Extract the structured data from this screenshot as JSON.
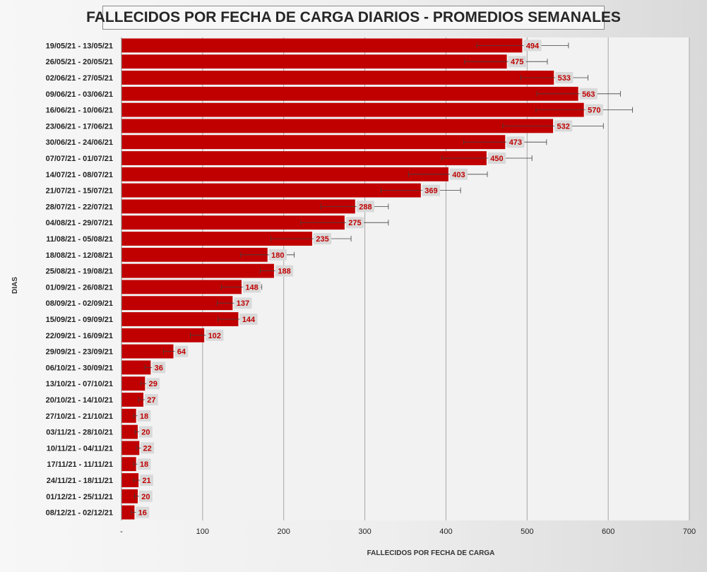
{
  "chart_data": {
    "type": "bar",
    "orientation": "horizontal",
    "title": "FALLECIDOS POR FECHA DE CARGA DIARIOS - PROMEDIOS SEMANALES",
    "xlabel": "FALLECIDOS POR FECHA DE CARGA",
    "ylabel": "DIAS",
    "xlim": [
      0,
      700
    ],
    "xticks": [
      0,
      100,
      200,
      300,
      400,
      500,
      600,
      700
    ],
    "xtick_labels": [
      "-",
      "100",
      "200",
      "300",
      "400",
      "500",
      "600",
      "700"
    ],
    "grid": true,
    "legend": "none",
    "bar_color": "#c00000",
    "categories": [
      "19/05/21 - 13/05/21",
      "26/05/21 - 20/05/21",
      "02/06/21 - 27/05/21",
      "09/06/21 - 03/06/21",
      "16/06/21 - 10/06/21",
      "23/06/21 - 17/06/21",
      "30/06/21 - 24/06/21",
      "07/07/21 - 01/07/21",
      "14/07/21 - 08/07/21",
      "21/07/21 - 15/07/21",
      "28/07/21 - 22/07/21",
      "04/08/21 - 29/07/21",
      "11/08/21 - 05/08/21",
      "18/08/21 - 12/08/21",
      "25/08/21 - 19/08/21",
      "01/09/21 - 26/08/21",
      "08/09/21 - 02/09/21",
      "15/09/21 - 09/09/21",
      "22/09/21 - 16/09/21",
      "29/09/21 - 23/09/21",
      "06/10/21 - 30/09/21",
      "13/10/21 - 07/10/21",
      "20/10/21 - 14/10/21",
      "27/10/21 - 21/10/21",
      "03/11/21 - 28/10/21",
      "10/11/21 - 04/11/21",
      "17/11/21 - 11/11/21",
      "24/11/21 - 18/11/21",
      "01/12/21 - 25/11/21",
      "08/12/21 - 02/12/21"
    ],
    "values": [
      494,
      475,
      533,
      563,
      570,
      532,
      473,
      450,
      403,
      369,
      288,
      275,
      235,
      180,
      188,
      148,
      137,
      144,
      102,
      64,
      36,
      29,
      27,
      18,
      20,
      22,
      18,
      21,
      20,
      16
    ],
    "error_low": [
      438,
      423,
      492,
      512,
      511,
      470,
      422,
      395,
      354,
      320,
      246,
      221,
      184,
      147,
      171,
      123,
      118,
      119,
      85,
      52,
      29,
      24,
      21,
      15,
      17,
      19,
      15,
      15,
      16,
      12
    ],
    "error_high": [
      551,
      525,
      575,
      615,
      630,
      594,
      524,
      506,
      451,
      418,
      329,
      329,
      283,
      213,
      204,
      173,
      155,
      167,
      118,
      76,
      43,
      34,
      34,
      21,
      23,
      25,
      21,
      26,
      24,
      19
    ]
  }
}
